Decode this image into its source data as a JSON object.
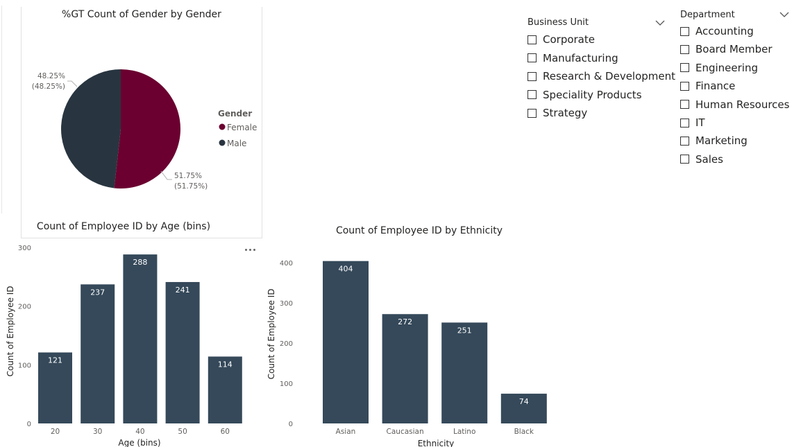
{
  "colors": {
    "female": "#6B0030",
    "male": "#283540",
    "bar": "#35495A",
    "label_gray": "#605E5C"
  },
  "slicers": {
    "business_unit": {
      "title": "Business Unit",
      "items": [
        "Corporate",
        "Manufacturing",
        "Research & Development",
        "Speciality Products",
        "Strategy"
      ]
    },
    "department": {
      "title": "Department",
      "items": [
        "Accounting",
        "Board Member",
        "Engineering",
        "Finance",
        "Human Resources",
        "IT",
        "Marketing",
        "Sales"
      ]
    }
  },
  "chart_data": [
    {
      "type": "pie",
      "title": "%GT Count of Gender by Gender",
      "legend_title": "Gender",
      "legend_position": "right",
      "categories": [
        "Female",
        "Male"
      ],
      "values": [
        51.75,
        48.25
      ],
      "data_labels": [
        "51.75%",
        "(51.75%)",
        "48.25%",
        "(48.25%)"
      ]
    },
    {
      "type": "bar",
      "title": "Count of Employee ID by Age (bins)",
      "xlabel": "Age (bins)",
      "ylabel": "Count of Employee ID",
      "categories": [
        "20",
        "30",
        "40",
        "50",
        "60"
      ],
      "values": [
        121,
        237,
        288,
        241,
        114
      ],
      "ylim": [
        0,
        300
      ],
      "yticks": [
        "0",
        "100",
        "200",
        "300"
      ],
      "grid": false
    },
    {
      "type": "bar",
      "title": "Count of Employee ID by Ethnicity",
      "xlabel": "Ethnicity",
      "ylabel": "Count of Employee ID",
      "categories": [
        "Asian",
        "Caucasian",
        "Latino",
        "Black"
      ],
      "values": [
        404,
        272,
        251,
        74
      ],
      "ylim": [
        0,
        400
      ],
      "yticks": [
        "0",
        "100",
        "200",
        "300",
        "400"
      ],
      "grid": false
    }
  ]
}
